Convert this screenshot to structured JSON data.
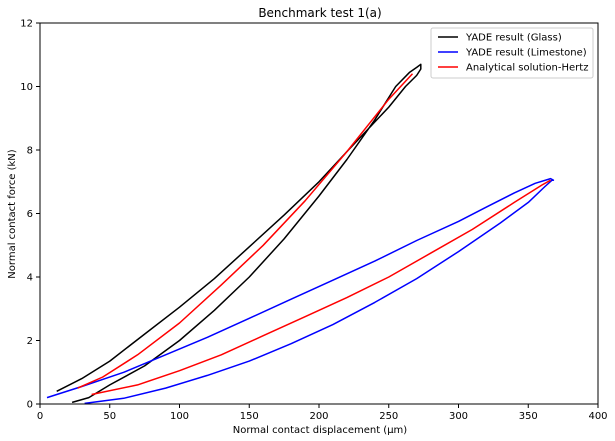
{
  "chart_data": {
    "type": "line",
    "title": "Benchmark test 1(a)",
    "xlabel": "Normal contact displacement (μm)",
    "ylabel": "Normal contact force (kN)",
    "xlim": [
      0,
      400
    ],
    "ylim": [
      0,
      12
    ],
    "xticks": [
      "0",
      "50",
      "100",
      "150",
      "200",
      "250",
      "300",
      "350",
      "400"
    ],
    "yticks": [
      "0",
      "2",
      "4",
      "6",
      "8",
      "10",
      "12"
    ],
    "grid": false,
    "legend_position": "top-right",
    "series": [
      {
        "name": "YADE result (Glass)",
        "color": "#000000",
        "x": [
          23,
          35,
          50,
          75,
          100,
          125,
          150,
          175,
          200,
          220,
          240,
          255,
          265,
          270,
          273,
          273,
          270,
          262,
          250,
          235,
          220,
          200,
          175,
          150,
          125,
          100,
          75,
          50,
          30,
          12
        ],
        "y": [
          0.05,
          0.2,
          0.6,
          1.2,
          2.0,
          2.95,
          4.0,
          5.2,
          6.55,
          7.7,
          8.95,
          10.0,
          10.45,
          10.6,
          10.7,
          10.55,
          10.35,
          10.0,
          9.35,
          8.65,
          7.95,
          7.0,
          5.95,
          4.95,
          3.95,
          3.05,
          2.2,
          1.35,
          0.8,
          0.4
        ]
      },
      {
        "name": "YADE result (Limestone)",
        "color": "#0000ff",
        "x": [
          32,
          60,
          90,
          120,
          150,
          180,
          210,
          240,
          270,
          300,
          330,
          350,
          362,
          367,
          368,
          366,
          355,
          340,
          320,
          300,
          270,
          240,
          210,
          180,
          150,
          120,
          90,
          60,
          30,
          5
        ],
        "y": [
          0.02,
          0.18,
          0.5,
          0.9,
          1.35,
          1.9,
          2.5,
          3.2,
          3.95,
          4.8,
          5.7,
          6.35,
          6.85,
          7.05,
          7.05,
          7.1,
          6.95,
          6.65,
          6.2,
          5.75,
          5.15,
          4.5,
          3.9,
          3.3,
          2.7,
          2.1,
          1.55,
          1.0,
          0.55,
          0.2
        ]
      },
      {
        "name": "Analytical solution-Hertz",
        "color": "#ff0000",
        "x": [
          27,
          45,
          70,
          100,
          130,
          160,
          190,
          220,
          250,
          267
        ],
        "y": [
          0.5,
          0.85,
          1.55,
          2.55,
          3.75,
          5.0,
          6.4,
          7.95,
          9.6,
          10.4
        ]
      },
      {
        "name": "",
        "color": "#ff0000",
        "x": [
          37,
          70,
          100,
          130,
          160,
          190,
          220,
          250,
          280,
          310,
          340,
          360,
          366
        ],
        "y": [
          0.3,
          0.6,
          1.05,
          1.55,
          2.15,
          2.75,
          3.35,
          4.0,
          4.75,
          5.5,
          6.35,
          6.9,
          7.05
        ]
      }
    ]
  }
}
